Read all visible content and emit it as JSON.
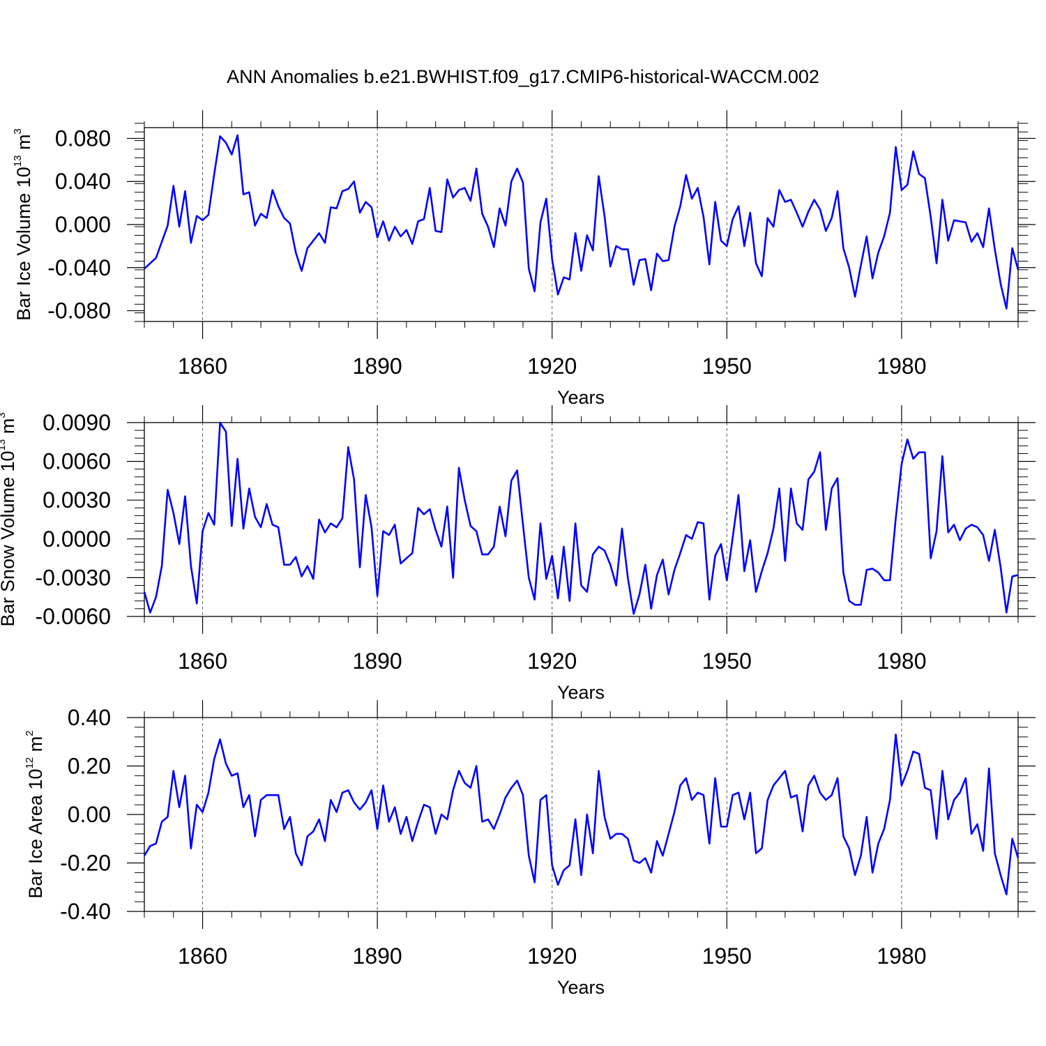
{
  "title": "ANN Anomalies b.e21.BWHIST.f09_g17.CMIP6-historical-WACCM.002",
  "line_color": "#0000ff",
  "chart_data": [
    {
      "type": "line",
      "ylabel": "Bar Ice Volume 10",
      "ylabel_exp": "13",
      "ylabel_unit": " m",
      "ylabel_unit_exp": "3",
      "xlabel": "Years",
      "xlim": [
        1850,
        2000
      ],
      "ylim": [
        -0.09,
        0.09
      ],
      "yticks": [
        -0.08,
        -0.04,
        0.0,
        0.04,
        0.08
      ],
      "ytick_labels": [
        "-0.080",
        "-0.040",
        "0.000",
        "0.040",
        "0.080"
      ],
      "xticks": [
        1860,
        1890,
        1920,
        1950,
        1980
      ],
      "xtick_labels": [
        "1860",
        "1890",
        "1920",
        "1950",
        "1980"
      ],
      "series": [
        {
          "name": "Bar Ice Volume",
          "x_start": 1850,
          "values": [
            -0.041,
            -0.036,
            -0.031,
            -0.016,
            -0.001,
            0.036,
            -0.002,
            0.031,
            -0.017,
            0.008,
            0.004,
            0.009,
            0.047,
            0.082,
            0.076,
            0.065,
            0.083,
            0.028,
            0.03,
            -0.001,
            0.01,
            0.006,
            0.032,
            0.017,
            0.006,
            0.001,
            -0.026,
            -0.043,
            -0.022,
            -0.015,
            -0.008,
            -0.017,
            0.016,
            0.015,
            0.031,
            0.033,
            0.04,
            0.011,
            0.021,
            0.016,
            -0.012,
            0.003,
            -0.015,
            -0.002,
            -0.011,
            -0.005,
            -0.018,
            0.003,
            0.005,
            0.034,
            -0.006,
            -0.007,
            0.042,
            0.025,
            0.032,
            0.034,
            0.022,
            0.052,
            0.01,
            -0.002,
            -0.021,
            0.015,
            -0.001,
            0.04,
            0.052,
            0.039,
            -0.041,
            -0.062,
            0.002,
            0.024,
            -0.032,
            -0.065,
            -0.049,
            -0.051,
            -0.008,
            -0.043,
            -0.01,
            -0.024,
            0.045,
            0.008,
            -0.039,
            -0.02,
            -0.023,
            -0.023,
            -0.056,
            -0.033,
            -0.032,
            -0.061,
            -0.027,
            -0.034,
            -0.033,
            -0.002,
            0.017,
            0.046,
            0.024,
            0.034,
            0.007,
            -0.037,
            0.021,
            -0.015,
            -0.02,
            0.005,
            0.017,
            -0.02,
            0.011,
            -0.036,
            -0.048,
            0.006,
            -0.002,
            0.032,
            0.021,
            0.023,
            0.011,
            -0.002,
            0.012,
            0.023,
            0.014,
            -0.006,
            0.006,
            0.031,
            -0.022,
            -0.04,
            -0.067,
            -0.038,
            -0.011,
            -0.05,
            -0.026,
            -0.011,
            0.011,
            0.072,
            0.032,
            0.037,
            0.068,
            0.047,
            0.043,
            0.007,
            -0.036,
            0.023,
            -0.015,
            0.004,
            0.003,
            0.002,
            -0.016,
            -0.008,
            -0.021,
            0.015,
            -0.023,
            -0.055,
            -0.078,
            -0.022,
            -0.042
          ]
        }
      ]
    },
    {
      "type": "line",
      "ylabel": "Bar Snow Volume 10",
      "ylabel_exp": "13",
      "ylabel_unit": " m",
      "ylabel_unit_exp": "3",
      "xlabel": "Years",
      "xlim": [
        1850,
        2000
      ],
      "ylim": [
        -0.006,
        0.009
      ],
      "yticks": [
        -0.006,
        -0.003,
        0.0,
        0.003,
        0.006,
        0.009
      ],
      "ytick_labels": [
        "-0.0060",
        "-0.0030",
        "0.0000",
        "0.0030",
        "0.0060",
        "0.0090"
      ],
      "xticks": [
        1860,
        1890,
        1920,
        1950,
        1980
      ],
      "xtick_labels": [
        "1860",
        "1890",
        "1920",
        "1950",
        "1980"
      ],
      "series": [
        {
          "name": "Bar Snow Volume",
          "x_start": 1850,
          "values": [
            -0.0041,
            -0.0057,
            -0.0045,
            -0.0021,
            0.0038,
            0.002,
            -0.0004,
            0.0033,
            -0.0021,
            -0.005,
            0.0006,
            0.002,
            0.0011,
            0.009,
            0.0083,
            0.001,
            0.0062,
            0.0008,
            0.0039,
            0.0017,
            0.0009,
            0.0027,
            0.0011,
            0.0009,
            -0.002,
            -0.002,
            -0.0014,
            -0.0029,
            -0.0021,
            -0.0031,
            0.0015,
            0.0005,
            0.0012,
            0.0009,
            0.0016,
            0.0071,
            0.0046,
            -0.0022,
            0.0034,
            0.0009,
            -0.0044,
            0.0006,
            0.0003,
            0.0011,
            -0.0019,
            -0.0015,
            -0.0011,
            0.0024,
            0.0019,
            0.0023,
            0.0007,
            -0.0006,
            0.0025,
            -0.003,
            0.0055,
            0.003,
            0.001,
            0.0006,
            -0.0012,
            -0.0012,
            -0.0006,
            0.0025,
            0.0002,
            0.0045,
            0.0053,
            0.0011,
            -0.003,
            -0.0047,
            0.0012,
            -0.0031,
            -0.0013,
            -0.0046,
            -0.0006,
            -0.0048,
            0.0012,
            -0.0036,
            -0.0041,
            -0.0012,
            -0.0006,
            -0.0009,
            -0.002,
            -0.0036,
            0.0008,
            -0.003,
            -0.0058,
            -0.0043,
            -0.002,
            -0.0054,
            -0.0028,
            -0.0016,
            -0.0043,
            -0.0024,
            -0.0011,
            0.0003,
            0.0,
            0.0013,
            0.0012,
            -0.0047,
            -0.0013,
            -0.0004,
            -0.0032,
            0.0001,
            0.0034,
            -0.0025,
            -0.0001,
            -0.0041,
            -0.0025,
            -0.0011,
            0.0008,
            0.0039,
            -0.0017,
            0.0039,
            0.0012,
            0.0007,
            0.0046,
            0.0052,
            0.0067,
            0.0007,
            0.0039,
            0.0047,
            -0.0026,
            -0.0048,
            -0.0051,
            -0.0051,
            -0.0024,
            -0.0023,
            -0.0026,
            -0.0032,
            -0.0032,
            0.0016,
            0.0058,
            0.0077,
            0.0062,
            0.0067,
            0.0067,
            -0.0015,
            0.0006,
            0.0064,
            0.0005,
            0.0011,
            -0.0001,
            0.0008,
            0.0011,
            0.0009,
            0.0003,
            -0.0017,
            0.0007,
            -0.0022,
            -0.0057,
            -0.0029,
            -0.0028
          ]
        }
      ]
    },
    {
      "type": "line",
      "ylabel": "Bar Ice Area 10",
      "ylabel_exp": "12",
      "ylabel_unit": " m",
      "ylabel_unit_exp": "2",
      "xlabel": "Years",
      "xlim": [
        1850,
        2000
      ],
      "ylim": [
        -0.4,
        0.4
      ],
      "yticks": [
        -0.4,
        -0.2,
        0.0,
        0.2,
        0.4
      ],
      "ytick_labels": [
        "-0.40",
        "-0.20",
        "0.00",
        "0.20",
        "0.40"
      ],
      "xticks": [
        1860,
        1890,
        1920,
        1950,
        1980
      ],
      "xtick_labels": [
        "1860",
        "1890",
        "1920",
        "1950",
        "1980"
      ],
      "series": [
        {
          "name": "Bar Ice Area",
          "x_start": 1850,
          "values": [
            -0.17,
            -0.13,
            -0.12,
            -0.03,
            -0.01,
            0.18,
            0.03,
            0.16,
            -0.14,
            0.04,
            0.01,
            0.09,
            0.23,
            0.31,
            0.21,
            0.16,
            0.17,
            0.03,
            0.08,
            -0.09,
            0.06,
            0.08,
            0.08,
            0.08,
            -0.06,
            -0.01,
            -0.16,
            -0.21,
            -0.09,
            -0.07,
            -0.02,
            -0.11,
            0.06,
            0.01,
            0.09,
            0.1,
            0.05,
            0.02,
            0.05,
            0.1,
            -0.06,
            0.12,
            -0.03,
            0.03,
            -0.08,
            -0.01,
            -0.11,
            -0.03,
            0.04,
            0.03,
            -0.08,
            0.0,
            -0.02,
            0.1,
            0.18,
            0.13,
            0.11,
            0.2,
            -0.03,
            -0.02,
            -0.06,
            0.0,
            0.07,
            0.11,
            0.14,
            0.08,
            -0.17,
            -0.28,
            0.06,
            0.08,
            -0.21,
            -0.29,
            -0.23,
            -0.21,
            -0.02,
            -0.25,
            0.0,
            -0.16,
            0.18,
            -0.01,
            -0.1,
            -0.08,
            -0.08,
            -0.1,
            -0.19,
            -0.2,
            -0.18,
            -0.24,
            -0.11,
            -0.17,
            -0.08,
            0.01,
            0.12,
            0.15,
            0.06,
            0.09,
            0.08,
            -0.12,
            0.15,
            -0.05,
            -0.05,
            0.08,
            0.09,
            -0.02,
            0.09,
            -0.16,
            -0.14,
            0.06,
            0.12,
            0.15,
            0.18,
            0.07,
            0.08,
            -0.07,
            0.12,
            0.16,
            0.09,
            0.06,
            0.08,
            0.15,
            -0.09,
            -0.14,
            -0.25,
            -0.17,
            -0.01,
            -0.24,
            -0.12,
            -0.06,
            0.06,
            0.33,
            0.12,
            0.18,
            0.26,
            0.25,
            0.11,
            0.1,
            -0.1,
            0.18,
            -0.02,
            0.06,
            0.09,
            0.15,
            -0.08,
            -0.04,
            -0.15,
            0.19,
            -0.16,
            -0.25,
            -0.33,
            -0.1,
            -0.18
          ]
        }
      ]
    }
  ]
}
